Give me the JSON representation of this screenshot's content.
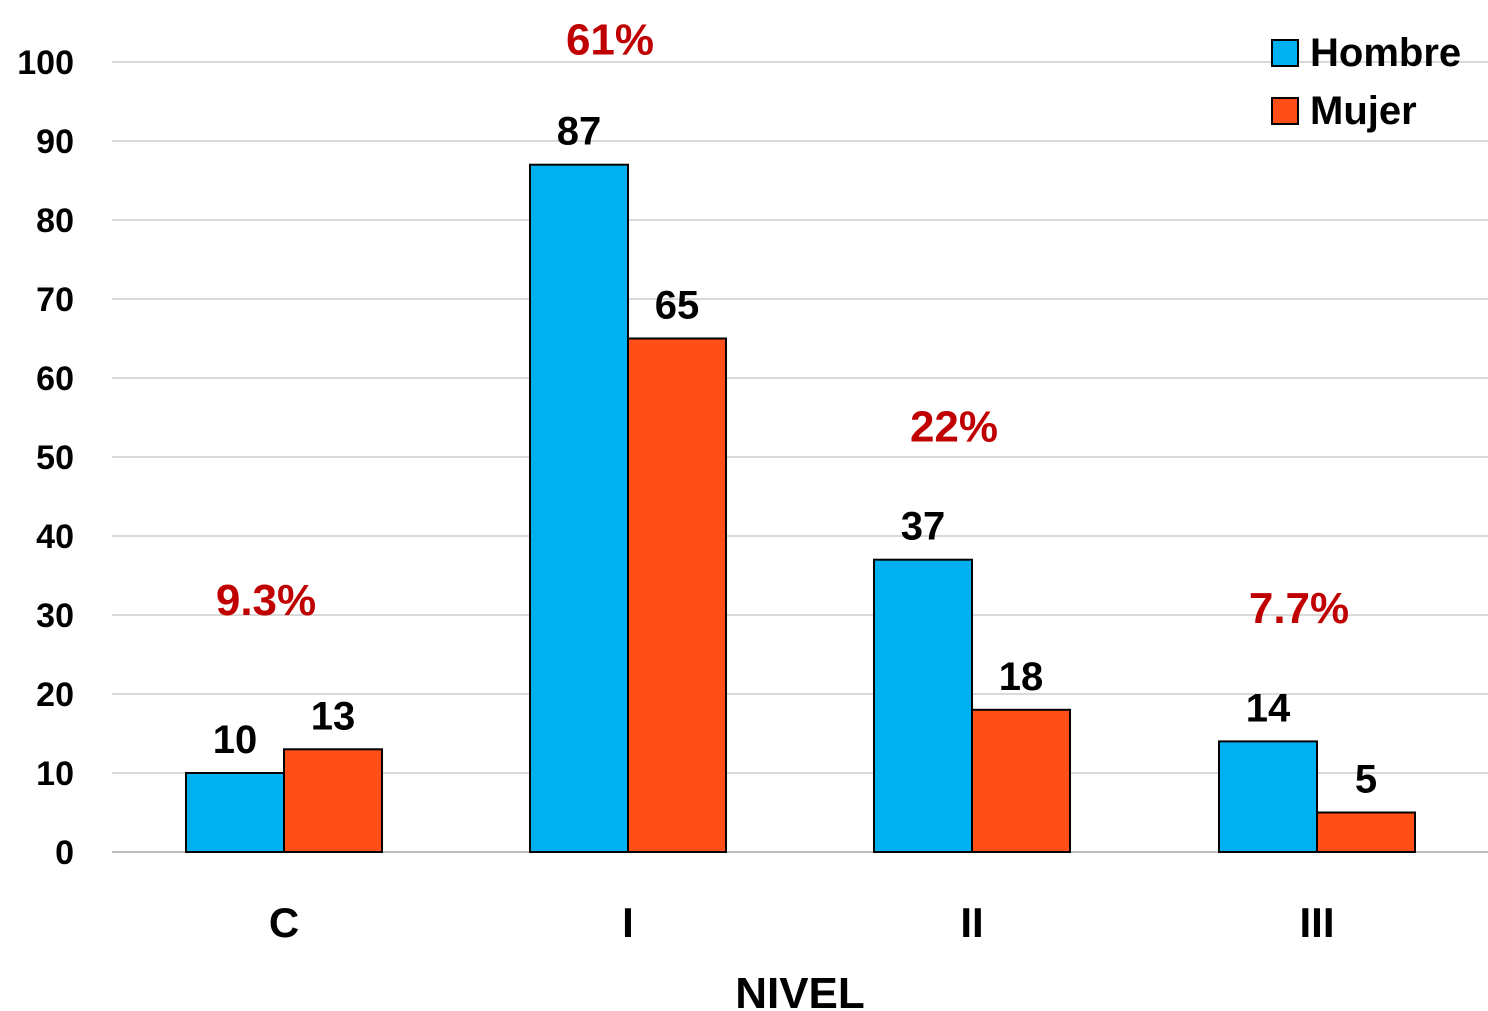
{
  "chart_data": {
    "type": "bar",
    "categories": [
      "C",
      "I",
      "II",
      "III"
    ],
    "series": [
      {
        "name": "Hombre",
        "color": "#00b0f0",
        "values": [
          10,
          87,
          37,
          14
        ]
      },
      {
        "name": "Mujer",
        "color": "#ff4f17",
        "values": [
          13,
          65,
          18,
          5
        ]
      }
    ],
    "annotations": [
      {
        "category": "C",
        "text": "9.3%",
        "y": 32
      },
      {
        "category": "I",
        "text": "61%",
        "y": 103
      },
      {
        "category": "II",
        "text": "22%",
        "y": 54
      },
      {
        "category": "III",
        "text": "7.7%",
        "y": 31
      }
    ],
    "annotation_color": "#c00000",
    "xlabel": "NIVEL",
    "ylabel": "",
    "ylim": [
      0,
      100
    ],
    "yticks": [
      0,
      10,
      20,
      30,
      40,
      50,
      60,
      70,
      80,
      90,
      100
    ],
    "grid": true,
    "legend": "top-right"
  }
}
